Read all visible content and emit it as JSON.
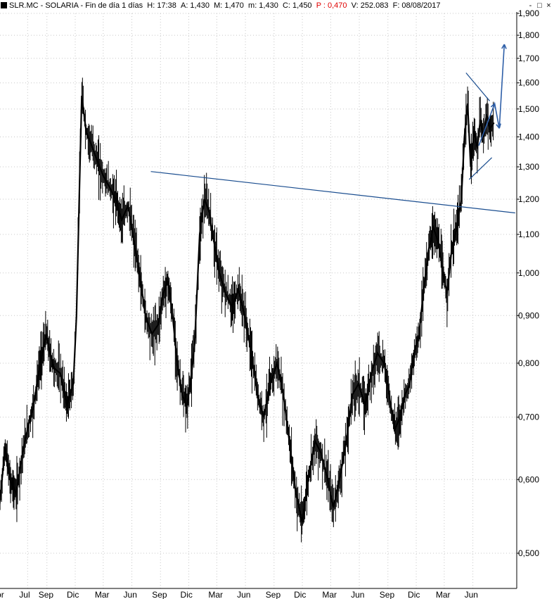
{
  "header": {
    "symbol": "SLR.MC - SOLARIA - Fin de día 1 días",
    "h": "H: 17:38",
    "a": "A: 1,430",
    "m": "M: 1,470",
    "mm": "m: 1,430",
    "c": "C: 1,450",
    "p": "P : 0,470",
    "v": "V: 252.083",
    "f": "F: 08/08/2017"
  },
  "window_controls": {
    "minimize": "-",
    "maximize": "□",
    "close": "×"
  },
  "colors": {
    "price": "#000000",
    "trendline": "#1a4d8f",
    "projection": "#2e5fa8",
    "grid": "#c8c8c8",
    "negative": "#e00000"
  },
  "chart_data": {
    "type": "line",
    "y_scale": "log",
    "ylim": [
      0.48,
      1.9
    ],
    "y_ticks": [
      0.5,
      0.6,
      0.7,
      0.8,
      0.9,
      1.0,
      1.1,
      1.2,
      1.3,
      1.4,
      1.5,
      1.6,
      1.7,
      1.8,
      1.9
    ],
    "y_tick_labels": [
      "0,500",
      "0,600",
      "0,700",
      "0,800",
      "0,900",
      "1,000",
      "1,100",
      "1,200",
      "1,300",
      "1,400",
      "1,500",
      "1,600",
      "1,700",
      "1,800",
      "1,900"
    ],
    "x_tick_labels": [
      "Apr",
      "Jul",
      "Sep",
      "Dic",
      "Mar",
      "Jun",
      "Sep",
      "Dic",
      "Mar",
      "Jun",
      "Sep",
      "Dic",
      "Mar",
      "Jun",
      "Sep",
      "Dic",
      "Mar",
      "Jun"
    ],
    "x_tick_dates": [
      "2013-04",
      "2013-07",
      "2013-09",
      "2013-12",
      "2014-03",
      "2014-06",
      "2014-09",
      "2014-12",
      "2015-03",
      "2015-06",
      "2015-09",
      "2015-12",
      "2016-03",
      "2016-06",
      "2016-09",
      "2016-12",
      "2017-03",
      "2017-06"
    ],
    "grid": true,
    "series": [
      {
        "x": [
          "2013-04-01",
          "2013-04-20",
          "2013-05-05",
          "2013-05-25",
          "2013-06-15",
          "2013-07-01",
          "2013-07-20",
          "2013-08-10",
          "2013-08-30",
          "2013-09-10",
          "2013-09-25",
          "2013-10-15",
          "2013-11-05",
          "2013-11-25",
          "2013-12-05",
          "2013-12-15",
          "2013-12-22",
          "2014-01-05",
          "2014-01-20",
          "2014-02-10",
          "2014-03-01",
          "2014-03-20",
          "2014-04-10",
          "2014-04-30",
          "2014-05-20",
          "2014-06-05",
          "2014-06-25",
          "2014-07-15",
          "2014-08-05",
          "2014-08-25",
          "2014-09-10",
          "2014-09-25",
          "2014-10-10",
          "2014-10-25",
          "2014-11-10",
          "2014-11-25",
          "2014-12-10",
          "2014-12-20",
          "2015-01-05",
          "2015-01-20",
          "2015-02-05",
          "2015-02-20",
          "2015-03-10",
          "2015-03-30",
          "2015-04-20",
          "2015-05-10",
          "2015-05-30",
          "2015-06-20",
          "2015-07-10",
          "2015-07-30",
          "2015-08-20",
          "2015-09-10",
          "2015-10-01",
          "2015-10-20",
          "2015-11-10",
          "2015-11-30",
          "2015-12-20",
          "2016-01-10",
          "2016-01-30",
          "2016-02-20",
          "2016-03-10",
          "2016-03-30",
          "2016-04-20",
          "2016-05-10",
          "2016-05-30",
          "2016-06-20",
          "2016-07-10",
          "2016-07-30",
          "2016-08-20",
          "2016-09-10",
          "2016-09-25",
          "2016-10-10",
          "2016-10-25",
          "2016-11-10",
          "2016-11-25",
          "2016-12-10",
          "2016-12-25",
          "2017-01-10",
          "2017-01-25",
          "2017-02-10",
          "2017-02-25",
          "2017-03-10",
          "2017-03-25",
          "2017-04-10",
          "2017-04-25",
          "2017-05-05",
          "2017-05-15",
          "2017-05-25",
          "2017-06-05",
          "2017-06-15",
          "2017-06-25",
          "2017-07-05",
          "2017-07-15",
          "2017-07-25",
          "2017-08-08"
        ],
        "y": [
          0.56,
          0.65,
          0.6,
          0.58,
          0.64,
          0.68,
          0.72,
          0.8,
          0.86,
          0.82,
          0.79,
          0.78,
          0.72,
          0.76,
          0.9,
          1.25,
          1.55,
          1.42,
          1.38,
          1.32,
          1.27,
          1.24,
          1.2,
          1.14,
          1.18,
          1.1,
          1.0,
          0.9,
          0.86,
          0.88,
          0.95,
          0.98,
          0.9,
          0.8,
          0.74,
          0.72,
          0.78,
          0.84,
          1.1,
          1.2,
          1.16,
          1.08,
          1.0,
          0.95,
          0.92,
          0.96,
          0.9,
          0.82,
          0.74,
          0.7,
          0.76,
          0.8,
          0.74,
          0.66,
          0.58,
          0.54,
          0.6,
          0.66,
          0.64,
          0.6,
          0.56,
          0.6,
          0.66,
          0.74,
          0.76,
          0.72,
          0.78,
          0.82,
          0.8,
          0.72,
          0.68,
          0.7,
          0.74,
          0.76,
          0.82,
          0.86,
          0.96,
          1.06,
          1.12,
          1.08,
          1.0,
          0.95,
          1.06,
          1.12,
          1.2,
          1.4,
          1.52,
          1.3,
          1.42,
          1.36,
          1.46,
          1.4,
          1.48,
          1.43,
          1.45
        ]
      }
    ],
    "annotations": {
      "trendline": {
        "from": [
          "2014-08-01",
          1.285
        ],
        "to": [
          "2017-10-15",
          1.16
        ]
      },
      "triangle_upper": {
        "from": [
          "2017-05-10",
          1.64
        ],
        "to": [
          "2017-07-25",
          1.53
        ]
      },
      "triangle_lower": {
        "from": [
          "2017-05-20",
          1.26
        ],
        "to": [
          "2017-08-01",
          1.33
        ]
      },
      "projection": [
        [
          "2017-06-20",
          1.37
        ],
        [
          "2017-08-10",
          1.52
        ],
        [
          "2017-08-25",
          1.43
        ],
        [
          "2017-09-10",
          1.76
        ]
      ]
    }
  }
}
